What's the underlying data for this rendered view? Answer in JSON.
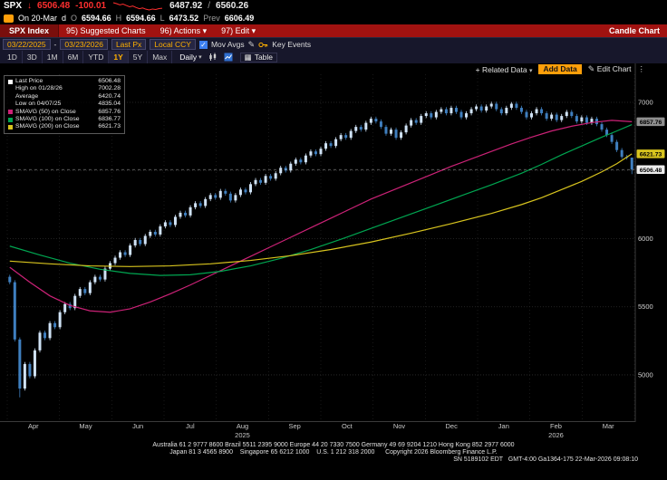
{
  "header": {
    "ticker": "SPX",
    "change_arrow": "↓",
    "last": "6506.48",
    "change": "-100.01",
    "range_low": "6487.92",
    "range_sep": "/",
    "range_high": "6560.26",
    "sparkline": [
      6594,
      6580,
      6560,
      6572,
      6550,
      6530,
      6542,
      6518,
      6500,
      6512,
      6492,
      6480,
      6495,
      6488,
      6502,
      6506
    ],
    "line2": {
      "on_label": "On 20-Mar",
      "session_label": "d",
      "o_label": "O",
      "o": "6594.66",
      "h_label": "H",
      "h": "6594.66",
      "l_label": "L",
      "l": "6473.52",
      "prev_label": "Prev",
      "prev": "6606.49"
    }
  },
  "menubar": {
    "security": "SPX Index",
    "items": [
      {
        "label": "95) Suggested Charts",
        "caret": ""
      },
      {
        "label": "96) Actions",
        "caret": "▾"
      },
      {
        "label": "97) Edit",
        "caret": "▾"
      }
    ],
    "right": "Candle Chart"
  },
  "toolbar": {
    "date_from": "03/22/2025",
    "range_sep": "-",
    "date_to": "03/23/2026",
    "price_type": "Last Px",
    "currency": "Local CCY",
    "mov_avgs_checked": "✓",
    "mov_avgs_label": "Mov Avgs",
    "key_events_label": "Key Events"
  },
  "periodbar": {
    "periods": [
      "1D",
      "3D",
      "1M",
      "6M",
      "YTD",
      "1Y",
      "5Y",
      "Max"
    ],
    "active_period": "1Y",
    "frequency": "Daily",
    "table_label": "Table",
    "related_data_label": "+ Related Data",
    "add_data_label": "Add Data",
    "edit_chart_label": "Edit Chart"
  },
  "icons": {
    "caret": "▾",
    "pencil": "✎",
    "kebab": "⋮",
    "table": "▦",
    "check": "✓"
  },
  "legend": {
    "rows": [
      {
        "swatch": "#ffffff",
        "label": "Last Price",
        "value": "6506.48"
      },
      {
        "swatch": null,
        "label": "High on 01/28/26",
        "value": "7002.28"
      },
      {
        "swatch": null,
        "label": "Average",
        "value": "6420.74"
      },
      {
        "swatch": null,
        "label": "Low on 04/07/25",
        "value": "4835.04"
      },
      {
        "swatch": "#cc2277",
        "label": "SMAVG (50) on Close",
        "value": "6857.76"
      },
      {
        "swatch": "#00a651",
        "label": "SMAVG (100) on Close",
        "value": "6836.77"
      },
      {
        "swatch": "#d8c41e",
        "label": "SMAVG (200) on Close",
        "value": "6621.73"
      }
    ]
  },
  "chart_data": {
    "type": "candlestick",
    "title": "SPX Index 1Y Daily Candle Chart",
    "last_price": 6506.48,
    "high": {
      "date": "01/28/26",
      "value": 7002.28
    },
    "low": {
      "date": "04/07/25",
      "value": 4835.04
    },
    "average": 6420.74,
    "ylim": [
      4654,
      7286
    ],
    "y_ticks": [
      5000,
      5500,
      6000,
      6500,
      7000
    ],
    "y_axis_labels": [
      "7000",
      "6000",
      "5500",
      "5000"
    ],
    "x_months": [
      "Apr",
      "May",
      "Jun",
      "Jul",
      "Aug",
      "Sep",
      "Oct",
      "Nov",
      "Dec",
      "Jan",
      "Feb",
      "Mar"
    ],
    "year_labels": [
      {
        "label": "2025",
        "boundary": 4.5
      },
      {
        "label": "2026",
        "boundary": 10.5
      }
    ],
    "up_color": "#cfe2f5",
    "down_color": "#3f7fbf",
    "candles": {
      "first_open": 5720,
      "wick": 15,
      "closes": [
        5680,
        5260,
        4900,
        5080,
        4990,
        5180,
        5310,
        5270,
        5380,
        5350,
        5460,
        5520,
        5490,
        5580,
        5630,
        5600,
        5680,
        5720,
        5700,
        5780,
        5820,
        5860,
        5900,
        5880,
        5950,
        5990,
        5960,
        6020,
        6050,
        6030,
        6090,
        6120,
        6100,
        6160,
        6190,
        6170,
        6230,
        6260,
        6240,
        6290,
        6320,
        6300,
        6350,
        6330,
        6280,
        6320,
        6360,
        6340,
        6400,
        6430,
        6410,
        6460,
        6440,
        6480,
        6520,
        6500,
        6550,
        6580,
        6560,
        6610,
        6640,
        6620,
        6660,
        6700,
        6680,
        6730,
        6760,
        6740,
        6790,
        6820,
        6800,
        6850,
        6880,
        6860,
        6820,
        6770,
        6800,
        6740,
        6780,
        6830,
        6870,
        6850,
        6900,
        6920,
        6890,
        6930,
        6950,
        6920,
        6960,
        6930,
        6890,
        6920,
        6950,
        6970,
        6940,
        6970,
        6990,
        6950,
        6920,
        6960,
        6990,
        6960,
        6930,
        6890,
        6920,
        6950,
        6920,
        6880,
        6910,
        6870,
        6900,
        6930,
        6900,
        6860,
        6890,
        6850,
        6880,
        6840,
        6800,
        6760,
        6710,
        6650,
        6600,
        6595,
        6506.48
      ],
      "overrides": {
        "2": {
          "low": 4835.04
        },
        "100": {
          "high": 7002.28
        },
        "124": {
          "open": 6594.66,
          "high": 6594.66,
          "low": 6473.52
        }
      }
    },
    "smavg": [
      {
        "name": "SMAVG (50) on Close",
        "color": "#cc2277",
        "last": 6857.76,
        "points": [
          [
            0,
            5790
          ],
          [
            4,
            5680
          ],
          [
            8,
            5580
          ],
          [
            12,
            5510
          ],
          [
            16,
            5470
          ],
          [
            20,
            5460
          ],
          [
            24,
            5485
          ],
          [
            28,
            5535
          ],
          [
            32,
            5595
          ],
          [
            36,
            5660
          ],
          [
            40,
            5730
          ],
          [
            44,
            5800
          ],
          [
            48,
            5870
          ],
          [
            52,
            5940
          ],
          [
            56,
            6010
          ],
          [
            60,
            6080
          ],
          [
            64,
            6150
          ],
          [
            68,
            6220
          ],
          [
            72,
            6290
          ],
          [
            76,
            6350
          ],
          [
            80,
            6410
          ],
          [
            84,
            6470
          ],
          [
            88,
            6530
          ],
          [
            92,
            6585
          ],
          [
            96,
            6640
          ],
          [
            100,
            6695
          ],
          [
            104,
            6745
          ],
          [
            108,
            6790
          ],
          [
            112,
            6825
          ],
          [
            116,
            6852
          ],
          [
            120,
            6868
          ],
          [
            124,
            6858
          ]
        ]
      },
      {
        "name": "SMAVG (100) on Close",
        "color": "#00a651",
        "last": 6836.77,
        "points": [
          [
            0,
            5945
          ],
          [
            6,
            5880
          ],
          [
            12,
            5820
          ],
          [
            18,
            5775
          ],
          [
            24,
            5745
          ],
          [
            30,
            5730
          ],
          [
            36,
            5735
          ],
          [
            42,
            5760
          ],
          [
            48,
            5800
          ],
          [
            54,
            5855
          ],
          [
            60,
            5920
          ],
          [
            66,
            5995
          ],
          [
            72,
            6075
          ],
          [
            78,
            6155
          ],
          [
            84,
            6235
          ],
          [
            90,
            6315
          ],
          [
            96,
            6395
          ],
          [
            102,
            6480
          ],
          [
            106,
            6545
          ],
          [
            110,
            6615
          ],
          [
            114,
            6680
          ],
          [
            118,
            6745
          ],
          [
            121,
            6790
          ],
          [
            124,
            6837
          ]
        ]
      },
      {
        "name": "SMAVG (200) on Close",
        "color": "#d8c41e",
        "last": 6621.73,
        "points": [
          [
            0,
            5835
          ],
          [
            8,
            5815
          ],
          [
            16,
            5800
          ],
          [
            24,
            5795
          ],
          [
            32,
            5800
          ],
          [
            40,
            5815
          ],
          [
            48,
            5840
          ],
          [
            56,
            5875
          ],
          [
            64,
            5920
          ],
          [
            72,
            5975
          ],
          [
            80,
            6040
          ],
          [
            88,
            6110
          ],
          [
            96,
            6185
          ],
          [
            102,
            6250
          ],
          [
            106,
            6300
          ],
          [
            110,
            6360
          ],
          [
            114,
            6420
          ],
          [
            118,
            6490
          ],
          [
            121,
            6550
          ],
          [
            124,
            6622
          ]
        ]
      }
    ],
    "badges": [
      {
        "value": "6857.76",
        "price": 6857.76,
        "bg": "#8f8f8f",
        "fg": "#000000"
      },
      {
        "value": "6621.73",
        "price": 6621.73,
        "bg": "#d8c41e",
        "fg": "#000000"
      },
      {
        "value": "6506.48",
        "price": 6506.48,
        "bg": "#ececec",
        "fg": "#000000"
      }
    ]
  },
  "footer": {
    "line1": "Australia 61 2 9777 8600 Brazil 5511 2395 9000 Europe 44 20 7330 7500 Germany 49 69 9204 1210 Hong Kong 852 2977 6000",
    "line2": "Japan 81 3 4565 8900    Singapore 65 6212 1000    U.S. 1 212 318 2000      Copyright 2026 Bloomberg Finance L.P.",
    "line3": "SN 5189102 EDT   GMT-4:00 Ga1364-175 22-Mar-2026 09:08:10"
  }
}
